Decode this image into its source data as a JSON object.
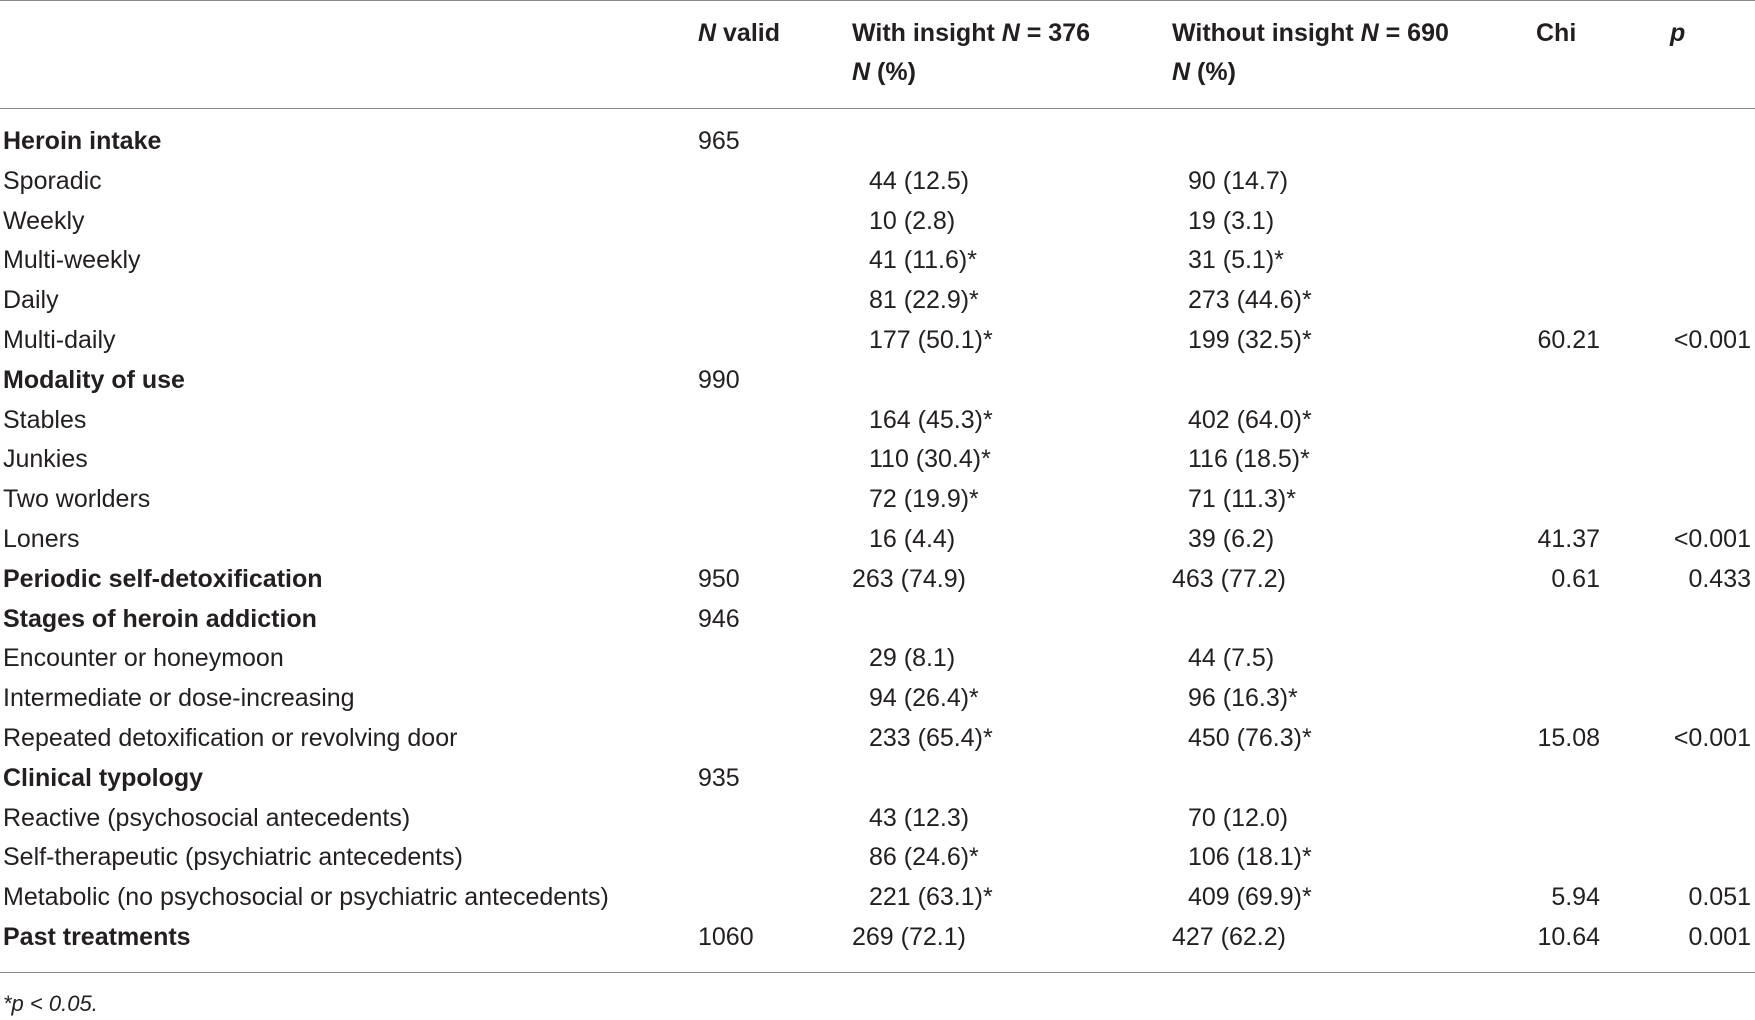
{
  "header": {
    "n_valid": {
      "italic": "N",
      "rest": " valid"
    },
    "with_insight": {
      "line1_pre": "With insight ",
      "line1_italic": "N",
      "line1_post": " = 376",
      "line2_italic": "N",
      "line2_post": " (%)"
    },
    "without_insight": {
      "line1_pre": "Without insight ",
      "line1_italic": "N",
      "line1_post": " = 690",
      "line2_italic": "N",
      "line2_post": " (%)"
    },
    "chi": "Chi",
    "p": "p"
  },
  "rows": [
    {
      "label": "Heroin intake",
      "bold": true,
      "n": "965",
      "with": "",
      "without": "",
      "chi": "",
      "p": ""
    },
    {
      "label": "Sporadic",
      "bold": false,
      "n": "",
      "with": "44 (12.5)",
      "without": "90 (14.7)",
      "chi": "",
      "p": ""
    },
    {
      "label": "Weekly",
      "bold": false,
      "n": "",
      "with": "10 (2.8)",
      "without": "19 (3.1)",
      "chi": "",
      "p": ""
    },
    {
      "label": "Multi-weekly",
      "bold": false,
      "n": "",
      "with": "41 (11.6)*",
      "without": "31 (5.1)*",
      "chi": "",
      "p": ""
    },
    {
      "label": "Daily",
      "bold": false,
      "n": "",
      "with": "81 (22.9)*",
      "without": "273 (44.6)*",
      "chi": "",
      "p": ""
    },
    {
      "label": "Multi-daily",
      "bold": false,
      "n": "",
      "with": "177 (50.1)*",
      "without": "199 (32.5)*",
      "chi": "60.21",
      "p": "<0.001"
    },
    {
      "label": "Modality of use",
      "bold": true,
      "n": "990",
      "with": "",
      "without": "",
      "chi": "",
      "p": ""
    },
    {
      "label": "Stables",
      "bold": false,
      "n": "",
      "with": "164 (45.3)*",
      "without": "402 (64.0)*",
      "chi": "",
      "p": ""
    },
    {
      "label": "Junkies",
      "bold": false,
      "n": "",
      "with": "110 (30.4)*",
      "without": "116 (18.5)*",
      "chi": "",
      "p": ""
    },
    {
      "label": "Two worlders",
      "bold": false,
      "n": "",
      "with": "72 (19.9)*",
      "without": "71 (11.3)*",
      "chi": "",
      "p": ""
    },
    {
      "label": "Loners",
      "bold": false,
      "n": "",
      "with": "16 (4.4)",
      "without": "39 (6.2)",
      "chi": "41.37",
      "p": "<0.001"
    },
    {
      "label": "Periodic self-detoxification",
      "bold": true,
      "n": "950",
      "with": "263 (74.9)",
      "without": "463 (77.2)",
      "chi": "0.61",
      "p": "0.433"
    },
    {
      "label": "Stages of heroin addiction",
      "bold": true,
      "n": "946",
      "with": "",
      "without": "",
      "chi": "",
      "p": ""
    },
    {
      "label": "Encounter or honeymoon",
      "bold": false,
      "n": "",
      "with": "29 (8.1)",
      "without": "44 (7.5)",
      "chi": "",
      "p": ""
    },
    {
      "label": "Intermediate or dose-increasing",
      "bold": false,
      "n": "",
      "with": "94 (26.4)*",
      "without": "96 (16.3)*",
      "chi": "",
      "p": ""
    },
    {
      "label": "Repeated detoxification or revolving door",
      "bold": false,
      "n": "",
      "with": "233 (65.4)*",
      "without": "450 (76.3)*",
      "chi": "15.08",
      "p": "<0.001"
    },
    {
      "label": "Clinical typology",
      "bold": true,
      "n": "935",
      "with": "",
      "without": "",
      "chi": "",
      "p": ""
    },
    {
      "label": "Reactive (psychosocial antecedents)",
      "bold": false,
      "n": "",
      "with": "43 (12.3)",
      "without": "70 (12.0)",
      "chi": "",
      "p": ""
    },
    {
      "label": "Self-therapeutic (psychiatric antecedents)",
      "bold": false,
      "n": "",
      "with": "86 (24.6)*",
      "without": "106 (18.1)*",
      "chi": "",
      "p": ""
    },
    {
      "label": "Metabolic (no psychosocial or psychiatric antecedents)",
      "bold": false,
      "n": "",
      "with": "221 (63.1)*",
      "without": "409 (69.9)*",
      "chi": "5.94",
      "p": "0.051"
    },
    {
      "label": "Past treatments",
      "bold": true,
      "n": "1060",
      "with": "269 (72.1)",
      "without": "427 (62.2)",
      "chi": "10.64",
      "p": "0.001"
    }
  ],
  "footnote": "*p < 0.05."
}
